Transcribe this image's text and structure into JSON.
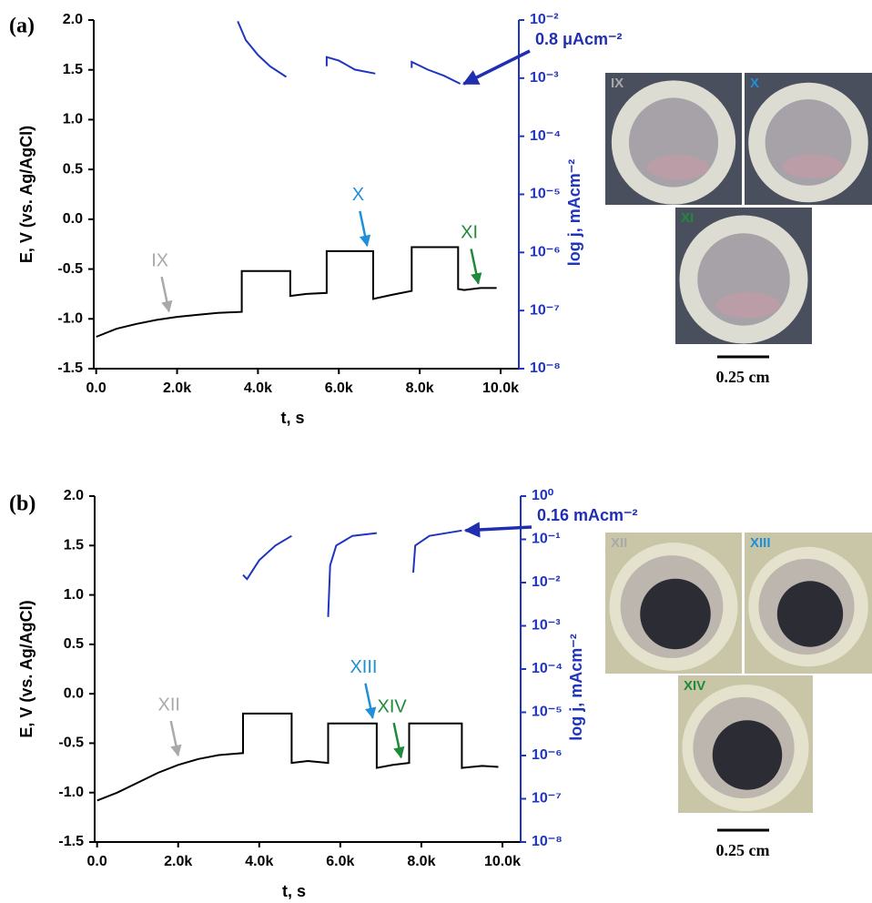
{
  "chart_data": [
    {
      "type": "line",
      "panel": "(a)",
      "xlabel": "t, s",
      "ylabel": "E, V (vs. Ag/AgCl)",
      "y2label": "log j, mAcm⁻²",
      "xlim": [
        -60,
        10450
      ],
      "xticks": [
        {
          "value": 0,
          "label": "0.0"
        },
        {
          "value": 2000,
          "label": "2.0k"
        },
        {
          "value": 4000,
          "label": "4.0k"
        },
        {
          "value": 6000,
          "label": "6.0k"
        },
        {
          "value": 8000,
          "label": "8.0k"
        },
        {
          "value": 10000,
          "label": "10.0k"
        }
      ],
      "ylim": [
        -1.5,
        2.0
      ],
      "yticks": [
        -1.5,
        {
          "value": -1.0,
          "label": "-1.0"
        },
        -0.5,
        {
          "value": 0.0,
          "label": "0.0"
        },
        0.5,
        {
          "value": 1.0,
          "label": "1.0"
        },
        1.5,
        {
          "value": 2.0,
          "label": "2.0"
        }
      ],
      "y2scale": "log",
      "y2lim": [
        1e-08,
        0.01
      ],
      "y2ticks": [
        {
          "value": 1e-08,
          "label": "10⁻⁸"
        },
        {
          "value": 1e-07,
          "label": "10⁻⁷"
        },
        {
          "value": 1e-06,
          "label": "10⁻⁶"
        },
        {
          "value": 1e-05,
          "label": "10⁻⁵"
        },
        {
          "value": 0.0001,
          "label": "10⁻⁴"
        },
        {
          "value": 0.001,
          "label": "10⁻³"
        },
        {
          "value": 0.01,
          "label": "10⁻²"
        }
      ],
      "series": [
        {
          "color": "#000000",
          "x": [
            0,
            500,
            1000,
            1500,
            2000,
            2500,
            3000,
            3600,
            3600,
            4800,
            4800,
            5200,
            5700,
            5700,
            6850,
            6850,
            7300,
            7800,
            7800,
            8950,
            8950,
            9100,
            9500,
            9900
          ],
          "values": [
            -1.18,
            -1.1,
            -1.05,
            -1.01,
            -0.98,
            -0.96,
            -0.94,
            -0.93,
            -0.52,
            -0.52,
            -0.77,
            -0.75,
            -0.74,
            -0.32,
            -0.32,
            -0.8,
            -0.76,
            -0.72,
            -0.28,
            -0.28,
            -0.7,
            -0.71,
            -0.69,
            -0.69
          ]
        },
        {
          "color": "#1f35c0",
          "axis": "y2",
          "x": [
            3500,
            3700,
            4000,
            4300,
            4700,
            4700,
            5700,
            5700,
            6000,
            6400,
            6900,
            6900,
            7800,
            7800,
            8200,
            8600,
            9000
          ],
          "values": [
            0.0095,
            0.0045,
            0.0025,
            0.0016,
            0.00105,
            null,
            0.0016,
            0.0023,
            0.002,
            0.0014,
            0.0012,
            null,
            0.0015,
            0.0019,
            0.0014,
            0.0011,
            0.0008
          ]
        }
      ],
      "annotations": [
        {
          "text": "IX",
          "color": "#a9a9a9",
          "x": 1800,
          "y": -0.98
        },
        {
          "text": "X",
          "color": "#1e8fd8",
          "x": 6700,
          "y": -0.32
        },
        {
          "text": "XI",
          "color": "#1e8a3a",
          "x": 9450,
          "y": -0.7
        },
        {
          "text": "0.8 μAcm⁻²",
          "color": "#1f2fb0",
          "axis": "y2",
          "x": 9000,
          "y": 0.0008
        }
      ]
    },
    {
      "type": "line",
      "panel": "(b)",
      "xlabel": "t, s",
      "ylabel": "E, V (vs. Ag/AgCl)",
      "y2label": "log j, mAcm⁻²",
      "xlim": [
        -60,
        10450
      ],
      "xticks": [
        {
          "value": 0,
          "label": "0.0"
        },
        {
          "value": 2000,
          "label": "2.0k"
        },
        {
          "value": 4000,
          "label": "4.0k"
        },
        {
          "value": 6000,
          "label": "6.0k"
        },
        {
          "value": 8000,
          "label": "8.0k"
        },
        {
          "value": 10000,
          "label": "10.0k"
        }
      ],
      "ylim": [
        -1.5,
        2.0
      ],
      "yticks": [
        -1.5,
        {
          "value": -1.0,
          "label": "-1.0"
        },
        -0.5,
        {
          "value": 0.0,
          "label": "0.0"
        },
        0.5,
        {
          "value": 1.0,
          "label": "1.0"
        },
        1.5,
        {
          "value": 2.0,
          "label": "2.0"
        }
      ],
      "y2scale": "log",
      "y2lim": [
        1e-08,
        1
      ],
      "y2ticks": [
        {
          "value": 1e-08,
          "label": "10⁻⁸"
        },
        {
          "value": 1e-07,
          "label": "10⁻⁷"
        },
        {
          "value": 1e-06,
          "label": "10⁻⁶"
        },
        {
          "value": 1e-05,
          "label": "10⁻⁵"
        },
        {
          "value": 0.0001,
          "label": "10⁻⁴"
        },
        {
          "value": 0.001,
          "label": "10⁻³"
        },
        {
          "value": 0.01,
          "label": "10⁻²"
        },
        {
          "value": 0.1,
          "label": "10⁻¹"
        },
        {
          "value": 1,
          "label": "10⁰"
        }
      ],
      "series": [
        {
          "color": "#000000",
          "x": [
            0,
            500,
            1000,
            1500,
            2000,
            2500,
            3000,
            3600,
            3600,
            4800,
            4800,
            5200,
            5700,
            5700,
            6900,
            6900,
            7300,
            7700,
            7700,
            9000,
            9000,
            9500,
            9900
          ],
          "values": [
            -1.08,
            -1.0,
            -0.9,
            -0.8,
            -0.72,
            -0.66,
            -0.62,
            -0.6,
            -0.2,
            -0.2,
            -0.7,
            -0.68,
            -0.7,
            -0.3,
            -0.3,
            -0.75,
            -0.72,
            -0.7,
            -0.3,
            -0.3,
            -0.75,
            -0.73,
            -0.74
          ]
        },
        {
          "color": "#1f35c0",
          "axis": "y2",
          "x": [
            3600,
            3700,
            4000,
            4400,
            4800,
            4800,
            5700,
            5750,
            5900,
            6300,
            6900,
            6900,
            7800,
            7850,
            8200,
            9000
          ],
          "values": [
            0.015,
            0.012,
            0.033,
            0.072,
            0.12,
            null,
            0.0016,
            0.025,
            0.072,
            0.12,
            0.14,
            null,
            0.017,
            0.072,
            0.12,
            0.16
          ]
        }
      ],
      "annotations": [
        {
          "text": "XII",
          "color": "#a9a9a9",
          "x": 2000,
          "y": -0.68
        },
        {
          "text": "XIII",
          "color": "#1e8fd8",
          "x": 6800,
          "y": -0.3
        },
        {
          "text": "XIV",
          "color": "#1e8a3a",
          "x": 7500,
          "y": -0.7
        },
        {
          "text": "0.16 mAcm⁻²",
          "color": "#1f2fb0",
          "axis": "y2",
          "x": 9000,
          "y": 0.16
        }
      ]
    }
  ],
  "photos": [
    {
      "labels": [
        {
          "text": "IX",
          "color": "#a9a9a9"
        },
        {
          "text": "X",
          "color": "#1e8fd8"
        },
        {
          "text": "XI",
          "color": "#1e8a3a"
        }
      ],
      "scale_label": "0.25 cm"
    },
    {
      "labels": [
        {
          "text": "XII",
          "color": "#a9a9a9"
        },
        {
          "text": "XIII",
          "color": "#1e8fd8"
        },
        {
          "text": "XIV",
          "color": "#1e8a3a"
        }
      ],
      "scale_label": "0.25 cm"
    }
  ]
}
